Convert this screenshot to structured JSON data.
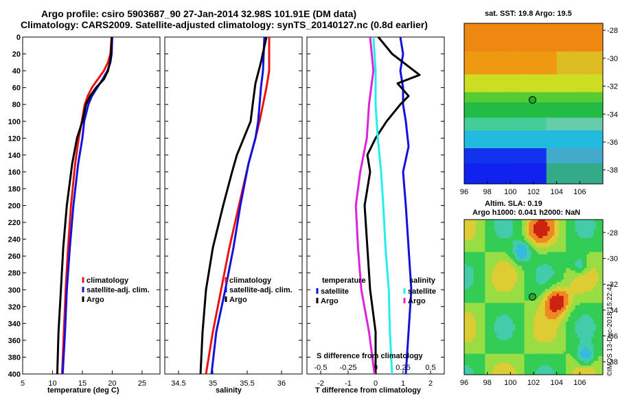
{
  "header": {
    "line1": "Argo profile: csiro 5903687_90 27-Jan-2014 32.98S 101.91E (DM data)",
    "line2": "Climatology: CARS2009. Satellite-adjusted climatology: synTS_20140127.nc (0.8d earlier)"
  },
  "colors": {
    "climatology": "#ee1111",
    "satellite": "#1111dd",
    "argo": "#000000",
    "salinity_sat": "#22eeee",
    "salinity_argo": "#dd22dd",
    "marker_fill": "#22aa22"
  },
  "chart_data": [
    {
      "type": "line",
      "id": "temperature",
      "title": "",
      "xlabel": "temperature (deg C)",
      "xlim": [
        5,
        28
      ],
      "xticks": [
        "5",
        "10",
        "15",
        "20",
        "25"
      ],
      "ylim": [
        0,
        400
      ],
      "yticks": [
        "0",
        "20",
        "40",
        "60",
        "80",
        "100",
        "120",
        "140",
        "160",
        "180",
        "200",
        "220",
        "240",
        "260",
        "280",
        "300",
        "320",
        "340",
        "360",
        "380",
        "400"
      ],
      "legend": [
        "climatology",
        "satellite-adj. clim.",
        "Argo"
      ],
      "series": [
        {
          "name": "climatology",
          "depth": [
            0,
            20,
            30,
            40,
            50,
            60,
            70,
            80,
            100,
            120,
            150,
            200,
            250,
            300,
            350,
            400
          ],
          "values": [
            19.9,
            19.7,
            19.3,
            18.6,
            17.6,
            16.6,
            15.9,
            15.4,
            14.9,
            14.4,
            13.8,
            13.1,
            12.6,
            12.2,
            11.9,
            11.6
          ]
        },
        {
          "name": "satellite-adj. clim.",
          "depth": [
            0,
            20,
            30,
            40,
            50,
            60,
            70,
            80,
            100,
            120,
            150,
            200,
            250,
            300,
            350,
            400
          ],
          "values": [
            20.0,
            19.9,
            19.7,
            19.2,
            18.4,
            17.5,
            16.6,
            16.0,
            15.3,
            15.0,
            14.3,
            13.5,
            12.9,
            12.4,
            12.1,
            11.7
          ]
        },
        {
          "name": "Argo",
          "depth": [
            0,
            20,
            30,
            40,
            50,
            60,
            70,
            80,
            100,
            120,
            150,
            200,
            250,
            300,
            350,
            400
          ],
          "values": [
            19.9,
            19.8,
            19.6,
            19.3,
            18.6,
            17.3,
            16.3,
            15.6,
            15.0,
            14.1,
            13.3,
            12.4,
            11.8,
            11.4,
            11.0,
            10.8
          ]
        }
      ]
    },
    {
      "type": "line",
      "id": "salinity",
      "xlabel": "salinity",
      "xlim": [
        34.3,
        36.3
      ],
      "xticks": [
        "34.5",
        "35",
        "35.5",
        "36"
      ],
      "ylim": [
        0,
        400
      ],
      "legend": [
        "climatology",
        "satellite-adj. clim.",
        "Argo"
      ],
      "series": [
        {
          "name": "climatology",
          "depth": [
            0,
            40,
            60,
            80,
            100,
            120,
            150,
            200,
            250,
            300,
            350,
            400
          ],
          "values": [
            35.82,
            35.82,
            35.78,
            35.73,
            35.68,
            35.62,
            35.52,
            35.38,
            35.24,
            35.12,
            35.0,
            34.9
          ]
        },
        {
          "name": "satellite-adj. clim.",
          "depth": [
            0,
            40,
            60,
            80,
            100,
            120,
            150,
            200,
            250,
            300,
            350,
            400
          ],
          "values": [
            35.75,
            35.73,
            35.7,
            35.68,
            35.66,
            35.62,
            35.52,
            35.4,
            35.3,
            35.18,
            35.05,
            34.98
          ]
        },
        {
          "name": "Argo",
          "depth": [
            0,
            30,
            55,
            80,
            100,
            120,
            140,
            160,
            200,
            250,
            300,
            350,
            400
          ],
          "values": [
            35.78,
            35.7,
            35.62,
            35.58,
            35.55,
            35.45,
            35.35,
            35.28,
            35.15,
            35.0,
            34.9,
            34.85,
            34.82
          ]
        }
      ]
    },
    {
      "type": "line",
      "id": "difference",
      "xlabel": "T difference from climatology",
      "top_axis_label": "S difference from climatology",
      "xlim": [
        -2.5,
        2.5
      ],
      "xticks": [
        "-2",
        "-1",
        "0",
        "1",
        "2"
      ],
      "top_xticks": [
        "-0.5",
        "-0.25",
        "0",
        "0.25",
        "0.5"
      ],
      "ylim": [
        0,
        400
      ],
      "legend_temperature_title": "temperature",
      "legend_salinity_title": "salinity",
      "legend_temperature": [
        "satellite",
        "Argo"
      ],
      "legend_salinity": [
        "satellite",
        "Argo"
      ],
      "series": [
        {
          "name": "T satellite",
          "depth": [
            0,
            20,
            40,
            60,
            80,
            100,
            130,
            160,
            200,
            250,
            300,
            350,
            400
          ],
          "values": [
            0.9,
            1.0,
            0.9,
            1.0,
            1.0,
            1.1,
            1.2,
            1.0,
            1.1,
            1.2,
            1.3,
            1.2,
            1.1
          ]
        },
        {
          "name": "T Argo",
          "depth": [
            0,
            20,
            40,
            45,
            55,
            70,
            80,
            100,
            120,
            140,
            160,
            200,
            250,
            300,
            350,
            400
          ],
          "values": [
            0.1,
            0.6,
            1.4,
            1.6,
            0.8,
            1.2,
            0.9,
            0.4,
            0.0,
            -0.3,
            -0.2,
            -0.4,
            -0.3,
            -0.2,
            0.0,
            0.0
          ]
        },
        {
          "name": "S satellite",
          "depth": [
            0,
            40,
            80,
            120,
            160,
            200,
            250,
            300,
            350,
            400
          ],
          "values": [
            -0.02,
            0.0,
            0.0,
            0.02,
            0.05,
            0.07,
            0.09,
            0.12,
            0.13,
            0.15
          ]
        },
        {
          "name": "S Argo",
          "depth": [
            0,
            40,
            80,
            120,
            160,
            200,
            250,
            300,
            350,
            400
          ],
          "values": [
            -0.05,
            -0.02,
            -0.06,
            -0.08,
            -0.14,
            -0.18,
            -0.16,
            -0.13,
            -0.06,
            -0.01
          ]
        }
      ]
    },
    {
      "type": "heatmap",
      "id": "sst-map",
      "title": "sat. SST: 19.8 Argo: 19.5",
      "xticks": [
        "96",
        "98",
        "100",
        "102",
        "104",
        "106"
      ],
      "yticks": [
        "-28",
        "-30",
        "-32",
        "-34",
        "-36",
        "-38"
      ],
      "xlim": [
        96,
        108
      ],
      "ylim": [
        -39,
        -27.5
      ],
      "marker": {
        "lon": 101.91,
        "lat": -32.98
      }
    },
    {
      "type": "heatmap",
      "id": "sla-map",
      "title_line1": "Altim. SLA: 0.19",
      "title_line2": "Argo h1000: 0.041 h2000: NaN",
      "xticks": [
        "96",
        "98",
        "100",
        "102",
        "104",
        "106"
      ],
      "yticks": [
        "-28",
        "-30",
        "-32",
        "-34",
        "-36",
        "-38"
      ],
      "xlim": [
        96,
        108
      ],
      "ylim": [
        -39,
        -27
      ],
      "marker": {
        "lon": 101.91,
        "lat": -32.98
      }
    }
  ],
  "footer": {
    "stamp": "©IMOS 13-Dec-2018 15:22:41"
  }
}
